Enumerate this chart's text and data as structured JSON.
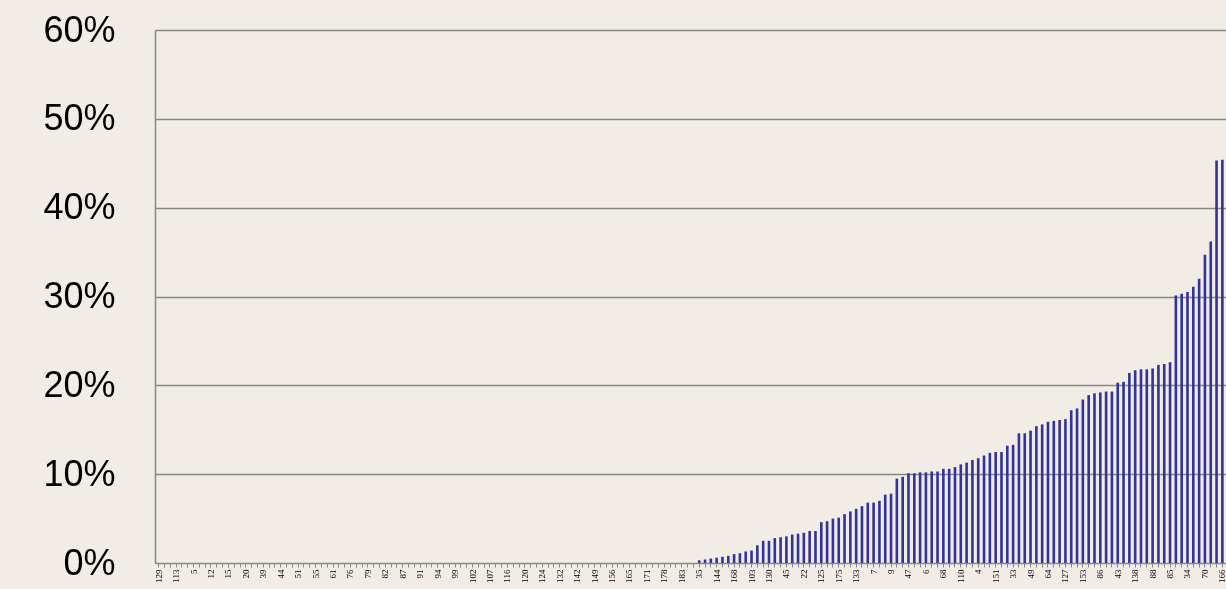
{
  "chart_data": {
    "type": "bar",
    "categories": [
      "129",
      null,
      null,
      "113",
      null,
      null,
      "5",
      null,
      null,
      "12",
      null,
      null,
      "15",
      null,
      null,
      "20",
      null,
      null,
      "39",
      null,
      null,
      "44",
      null,
      null,
      "51",
      null,
      null,
      "55",
      null,
      null,
      "61",
      null,
      null,
      "76",
      null,
      null,
      "79",
      null,
      null,
      "82",
      null,
      null,
      "87",
      null,
      null,
      "91",
      null,
      null,
      "94",
      null,
      null,
      "99",
      null,
      null,
      "102",
      null,
      null,
      "107",
      null,
      null,
      "116",
      null,
      null,
      "120",
      null,
      null,
      "124",
      null,
      null,
      "132",
      null,
      null,
      "142",
      null,
      null,
      "149",
      null,
      null,
      "156",
      null,
      null,
      "165",
      null,
      null,
      "171",
      null,
      null,
      "178",
      null,
      null,
      "183",
      null,
      null,
      "35",
      null,
      null,
      "144",
      null,
      null,
      "168",
      null,
      null,
      "103",
      null,
      null,
      "130",
      null,
      null,
      "45",
      null,
      null,
      "22",
      null,
      null,
      "125",
      null,
      null,
      "175",
      null,
      null,
      "133",
      null,
      null,
      "7",
      null,
      null,
      "9",
      null,
      null,
      "47",
      null,
      null,
      "6",
      null,
      null,
      "68",
      null,
      null,
      "110",
      null,
      null,
      "4",
      null,
      null,
      "151",
      null,
      null,
      "33",
      null,
      null,
      "49",
      null,
      null,
      "64",
      null,
      null,
      "127",
      null,
      null,
      "153",
      null,
      null,
      "86",
      null,
      null,
      "43",
      null,
      null,
      "138",
      null,
      null,
      "88",
      null,
      null,
      "85",
      null,
      null,
      "34",
      null,
      null,
      "70",
      null,
      null,
      "166"
    ],
    "values": [
      0,
      0,
      0,
      0,
      0,
      0,
      0,
      0,
      0,
      0,
      0,
      0,
      0,
      0,
      0,
      0,
      0,
      0,
      0,
      0,
      0,
      0,
      0,
      0,
      0,
      0,
      0,
      0,
      0,
      0,
      0,
      0,
      0,
      0,
      0,
      0,
      0,
      0,
      0,
      0,
      0,
      0,
      0,
      0,
      0,
      0,
      0,
      0,
      0,
      0,
      0,
      0,
      0,
      0,
      0,
      0,
      0,
      0,
      0,
      0,
      0,
      0,
      0,
      0,
      0,
      0,
      0,
      0,
      0,
      0,
      0,
      0,
      0,
      0,
      0,
      0,
      0,
      0,
      0,
      0,
      0,
      0,
      0,
      0,
      0,
      0,
      0,
      0,
      0,
      0,
      0,
      0,
      0,
      0.3,
      0.4,
      0.5,
      0.6,
      0.7,
      0.8,
      1.0,
      1.1,
      1.3,
      1.4,
      2.0,
      2.5,
      2.5,
      2.8,
      2.9,
      3.0,
      3.2,
      3.3,
      3.4,
      3.6,
      3.6,
      4.6,
      4.7,
      5.0,
      5.1,
      5.5,
      5.8,
      6.1,
      6.4,
      6.8,
      6.8,
      7.0,
      7.7,
      7.8,
      9.5,
      9.7,
      10.1,
      10.1,
      10.2,
      10.2,
      10.3,
      10.3,
      10.6,
      10.6,
      10.8,
      11.1,
      11.3,
      11.6,
      11.8,
      12.1,
      12.4,
      12.5,
      12.5,
      13.2,
      13.3,
      14.6,
      14.6,
      14.9,
      15.4,
      15.6,
      15.9,
      16.0,
      16.1,
      16.2,
      17.2,
      17.4,
      18.4,
      18.9,
      19.1,
      19.2,
      19.3,
      19.3,
      20.3,
      20.4,
      21.4,
      21.7,
      21.8,
      21.8,
      21.9,
      22.3,
      22.4,
      22.6,
      30.1,
      30.3,
      30.5,
      31.1,
      32.0,
      34.7,
      36.2,
      45.3,
      45.4
    ],
    "color": "#333399",
    "ylim": [
      0,
      60
    ],
    "yticks": [
      {
        "value": 0,
        "label": "0%"
      },
      {
        "value": 10,
        "label": "10%"
      },
      {
        "value": 20,
        "label": "20%"
      },
      {
        "value": 30,
        "label": "30%"
      },
      {
        "value": 40,
        "label": "40%"
      },
      {
        "value": 50,
        "label": "50%"
      },
      {
        "value": 60,
        "label": "60%"
      }
    ],
    "grid": "y"
  }
}
